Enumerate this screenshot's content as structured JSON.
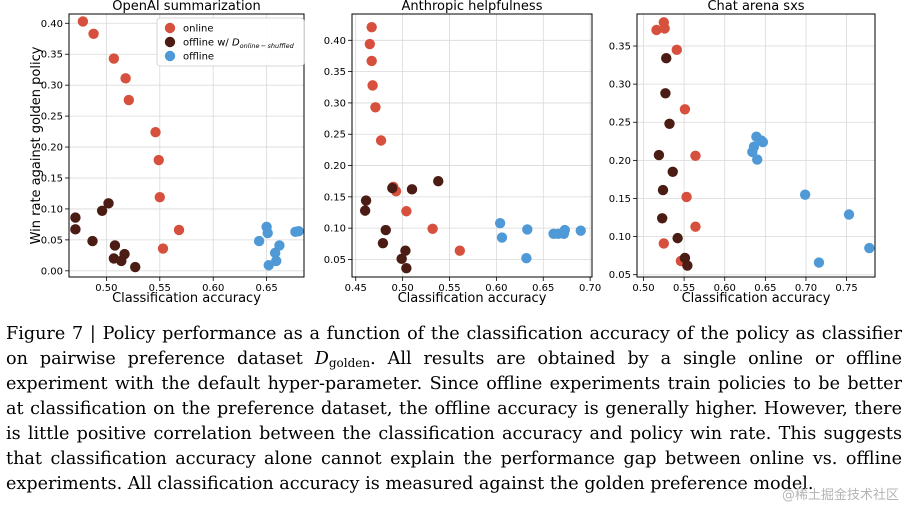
{
  "chart_data": [
    {
      "type": "scatter",
      "title": "OpenAI summarization",
      "xlabel": "Classification accuracy",
      "ylabel": "Win rate against golden policy",
      "xlim": [
        0.465,
        0.685
      ],
      "ylim": [
        -0.01,
        0.415
      ],
      "xticks": [
        0.5,
        0.55,
        0.6,
        0.65
      ],
      "xtick_labels": [
        "0.50",
        "0.55",
        "0.60",
        "0.65"
      ],
      "yticks": [
        0.0,
        0.05,
        0.1,
        0.15,
        0.2,
        0.25,
        0.3,
        0.35,
        0.4
      ],
      "ytick_labels": [
        "0.00",
        "0.05",
        "0.10",
        "0.15",
        "0.20",
        "0.25",
        "0.30",
        "0.35",
        "0.40"
      ],
      "grid": true,
      "legend": "top-center",
      "series": [
        {
          "name": "online",
          "color": "#d6503d",
          "points": [
            [
              0.478,
              0.403
            ],
            [
              0.488,
              0.383
            ],
            [
              0.507,
              0.343
            ],
            [
              0.518,
              0.311
            ],
            [
              0.521,
              0.276
            ],
            [
              0.546,
              0.224
            ],
            [
              0.549,
              0.179
            ],
            [
              0.55,
              0.119
            ],
            [
              0.568,
              0.066
            ],
            [
              0.553,
              0.036
            ]
          ]
        },
        {
          "name": "offline w/ D_online-shuffled",
          "color": "#4a1c14",
          "points": [
            [
              0.471,
              0.086
            ],
            [
              0.471,
              0.067
            ],
            [
              0.502,
              0.109
            ],
            [
              0.496,
              0.097
            ],
            [
              0.487,
              0.048
            ],
            [
              0.508,
              0.041
            ],
            [
              0.507,
              0.02
            ],
            [
              0.517,
              0.027
            ],
            [
              0.514,
              0.016
            ],
            [
              0.527,
              0.006
            ]
          ]
        },
        {
          "name": "offline",
          "color": "#4f9ad6",
          "points": [
            [
              0.65,
              0.071
            ],
            [
              0.651,
              0.061
            ],
            [
              0.643,
              0.048
            ],
            [
              0.662,
              0.041
            ],
            [
              0.658,
              0.029
            ],
            [
              0.652,
              0.009
            ],
            [
              0.659,
              0.016
            ],
            [
              0.677,
              0.063
            ],
            [
              0.68,
              0.064
            ]
          ]
        }
      ]
    },
    {
      "type": "scatter",
      "title": "Anthropic helpfulness",
      "xlabel": "Classification accuracy",
      "ylabel": "",
      "xlim": [
        0.446,
        0.702
      ],
      "ylim": [
        0.022,
        0.442
      ],
      "xticks": [
        0.45,
        0.5,
        0.55,
        0.6,
        0.65,
        0.7
      ],
      "xtick_labels": [
        "0.45",
        "0.50",
        "0.55",
        "0.60",
        "0.65",
        "0.70"
      ],
      "yticks": [
        0.05,
        0.1,
        0.15,
        0.2,
        0.25,
        0.3,
        0.35,
        0.4
      ],
      "ytick_labels": [
        "0.05",
        "0.10",
        "0.15",
        "0.20",
        "0.25",
        "0.30",
        "0.35",
        "0.40"
      ],
      "grid": true,
      "series": [
        {
          "name": "online",
          "color": "#d6503d",
          "points": [
            [
              0.467,
              0.421
            ],
            [
              0.465,
              0.394
            ],
            [
              0.467,
              0.367
            ],
            [
              0.468,
              0.328
            ],
            [
              0.471,
              0.293
            ],
            [
              0.477,
              0.24
            ],
            [
              0.49,
              0.166
            ],
            [
              0.493,
              0.159
            ],
            [
              0.504,
              0.127
            ],
            [
              0.532,
              0.099
            ],
            [
              0.561,
              0.064
            ]
          ]
        },
        {
          "name": "offline w/ D_online-shuffled",
          "color": "#4a1c14",
          "points": [
            [
              0.461,
              0.144
            ],
            [
              0.46,
              0.128
            ],
            [
              0.489,
              0.164
            ],
            [
              0.51,
              0.162
            ],
            [
              0.538,
              0.175
            ],
            [
              0.482,
              0.097
            ],
            [
              0.479,
              0.076
            ],
            [
              0.503,
              0.064
            ],
            [
              0.499,
              0.051
            ],
            [
              0.504,
              0.036
            ]
          ]
        },
        {
          "name": "offline",
          "color": "#4f9ad6",
          "points": [
            [
              0.604,
              0.108
            ],
            [
              0.606,
              0.085
            ],
            [
              0.633,
              0.098
            ],
            [
              0.632,
              0.052
            ],
            [
              0.661,
              0.091
            ],
            [
              0.666,
              0.091
            ],
            [
              0.672,
              0.091
            ],
            [
              0.673,
              0.097
            ],
            [
              0.69,
              0.096
            ]
          ]
        }
      ]
    },
    {
      "type": "scatter",
      "title": "Chat arena sxs",
      "xlabel": "Classification accuracy",
      "ylabel": "",
      "xlim": [
        0.492,
        0.785
      ],
      "ylim": [
        0.047,
        0.392
      ],
      "xticks": [
        0.5,
        0.55,
        0.6,
        0.65,
        0.7,
        0.75
      ],
      "xtick_labels": [
        "0.50",
        "0.55",
        "0.60",
        "0.65",
        "0.70",
        "0.75"
      ],
      "yticks": [
        0.05,
        0.1,
        0.15,
        0.2,
        0.25,
        0.3,
        0.35
      ],
      "ytick_labels": [
        "0.05",
        "0.10",
        "0.15",
        "0.20",
        "0.25",
        "0.30",
        "0.35"
      ],
      "grid": true,
      "series": [
        {
          "name": "online",
          "color": "#d6503d",
          "points": [
            [
              0.525,
              0.381
            ],
            [
              0.526,
              0.373
            ],
            [
              0.516,
              0.371
            ],
            [
              0.541,
              0.345
            ],
            [
              0.551,
              0.267
            ],
            [
              0.564,
              0.206
            ],
            [
              0.553,
              0.152
            ],
            [
              0.564,
              0.113
            ],
            [
              0.525,
              0.091
            ],
            [
              0.546,
              0.068
            ]
          ]
        },
        {
          "name": "offline w/ D_online-shuffled",
          "color": "#4a1c14",
          "points": [
            [
              0.528,
              0.334
            ],
            [
              0.527,
              0.288
            ],
            [
              0.532,
              0.248
            ],
            [
              0.519,
              0.207
            ],
            [
              0.536,
              0.185
            ],
            [
              0.524,
              0.161
            ],
            [
              0.523,
              0.124
            ],
            [
              0.542,
              0.098
            ],
            [
              0.551,
              0.072
            ],
            [
              0.554,
              0.062
            ]
          ]
        },
        {
          "name": "offline",
          "color": "#4f9ad6",
          "points": [
            [
              0.639,
              0.231
            ],
            [
              0.645,
              0.226
            ],
            [
              0.647,
              0.224
            ],
            [
              0.636,
              0.218
            ],
            [
              0.634,
              0.211
            ],
            [
              0.64,
              0.201
            ],
            [
              0.699,
              0.155
            ],
            [
              0.753,
              0.129
            ],
            [
              0.778,
              0.085
            ],
            [
              0.716,
              0.066
            ]
          ]
        }
      ]
    }
  ],
  "caption": {
    "label": "Figure 7 | ",
    "part1": "Policy performance as a function of the classification accuracy of the policy as classifier on pairwise preference dataset ",
    "dataset_symbol": "D",
    "dataset_subscript": "golden",
    "part2": ". All results are obtained by a single online or offline experiment with the default hyper-parameter. Since offline experiments train policies to be better at classification on the preference dataset, the offline accuracy is generally higher. However, there is little positive correlation between the classification accuracy and policy win rate. This suggests that classification accuracy alone cannot explain the performance gap between online vs. offline experiments. All classification accuracy is measured against the golden preference model."
  },
  "watermark": "@稀土掘金技术社区"
}
